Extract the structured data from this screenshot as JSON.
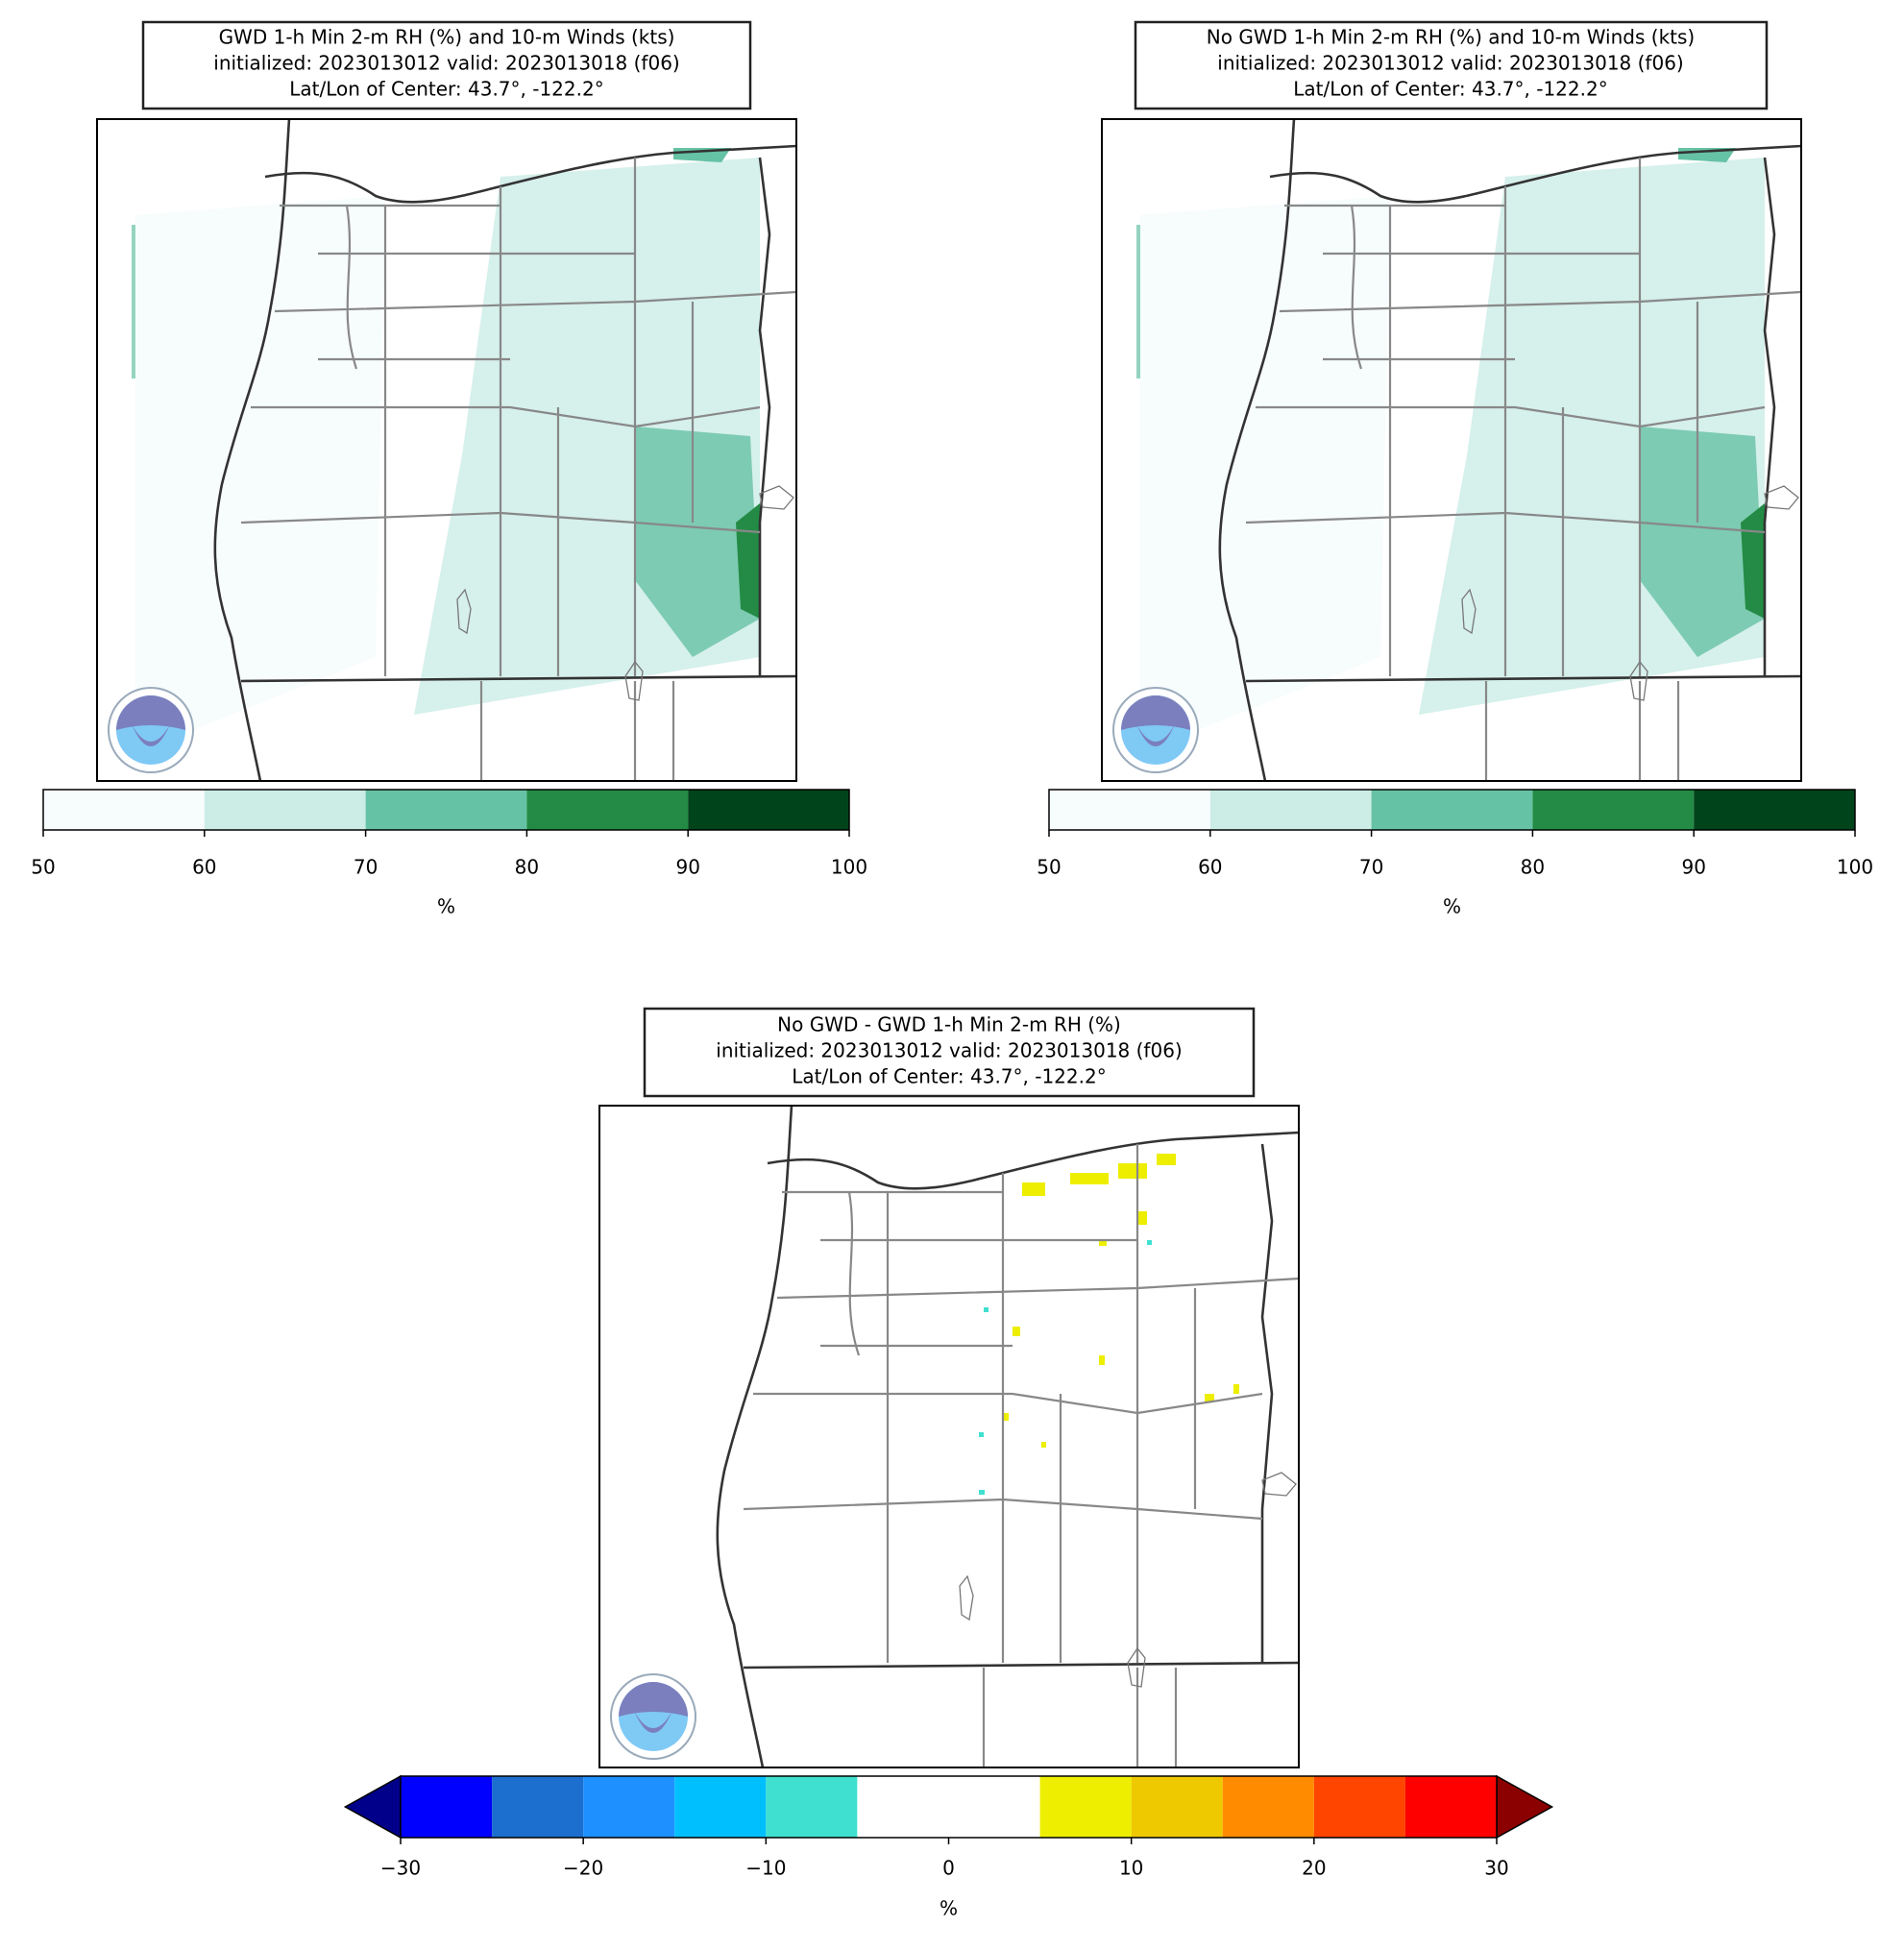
{
  "panels": [
    {
      "title": [
        "GWD 1-h Min 2-m RH (%) and 10-m Winds (kts)",
        "initialized: 2023013012 valid: 2023013018 (f06)",
        "Lat/Lon of Center: 43.7°, -122.2°"
      ],
      "colorbar": {
        "bounds": [
          50,
          60,
          70,
          80,
          90,
          100
        ],
        "colors": [
          "#f7fcfd",
          "#ccece6",
          "#66c2a4",
          "#238b45",
          "#00441b"
        ],
        "ticks": [
          50,
          60,
          70,
          80,
          90,
          100
        ],
        "label": "%"
      }
    },
    {
      "title": [
        "No GWD 1-h Min 2-m RH (%) and 10-m Winds (kts)",
        "initialized: 2023013012 valid: 2023013018 (f06)",
        "Lat/Lon of Center: 43.7°, -122.2°"
      ],
      "colorbar": {
        "bounds": [
          50,
          60,
          70,
          80,
          90,
          100
        ],
        "colors": [
          "#f7fcfd",
          "#ccece6",
          "#66c2a4",
          "#238b45",
          "#00441b"
        ],
        "ticks": [
          50,
          60,
          70,
          80,
          90,
          100
        ],
        "label": "%"
      }
    },
    {
      "title": [
        "No GWD - GWD 1-h Min 2-m RH (%)",
        "initialized: 2023013012 valid: 2023013018 (f06)",
        "Lat/Lon of Center: 43.7°, -122.2°"
      ],
      "colorbar": {
        "bounds": [
          -30,
          -25,
          -20,
          -15,
          -10,
          -5,
          0,
          5,
          10,
          15,
          20,
          25,
          30
        ],
        "colors": [
          "#0000ff",
          "#1c6fcf",
          "#1e90ff",
          "#00bfff",
          "#40e0d0",
          "#ffffff",
          "#ffffff",
          "#eeee00",
          "#eec900",
          "#ff8c00",
          "#ff4500",
          "#ff0000"
        ],
        "under": "#00008b",
        "over": "#8b0000",
        "ticks": [
          -30,
          -20,
          -10,
          0,
          10,
          20,
          30
        ],
        "tick_labels": [
          "−30",
          "−20",
          "−10",
          "0",
          "10",
          "20",
          "30"
        ],
        "label": "%"
      }
    }
  ]
}
